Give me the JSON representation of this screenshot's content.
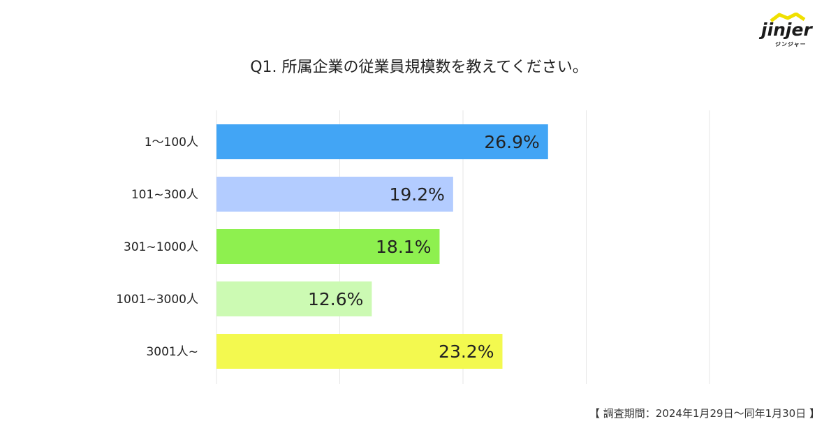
{
  "logo": {
    "text": "jinjer",
    "subtext": "ジンジャー",
    "icon": "hat-icon",
    "accent_color": "#f0e000"
  },
  "chart_data": {
    "type": "bar",
    "orientation": "horizontal",
    "title": "Q1. 所属企業の従業員規模数を教えてください。",
    "categories": [
      "1〜100人",
      "101~300人",
      "301~1000人",
      "1001~3000人",
      "3001人~"
    ],
    "values": [
      26.9,
      19.2,
      18.1,
      12.6,
      23.2
    ],
    "value_labels": [
      "26.9%",
      "19.2%",
      "18.1%",
      "12.6%",
      "23.2%"
    ],
    "colors": [
      "#42a5f5",
      "#b3ccff",
      "#8ef04f",
      "#ccfab3",
      "#f3f94f"
    ],
    "xlim": [
      0,
      40
    ],
    "grid": true,
    "legend": "none"
  },
  "footnote": "【 調査期間：2024年1月29日〜同年1月30日 】"
}
